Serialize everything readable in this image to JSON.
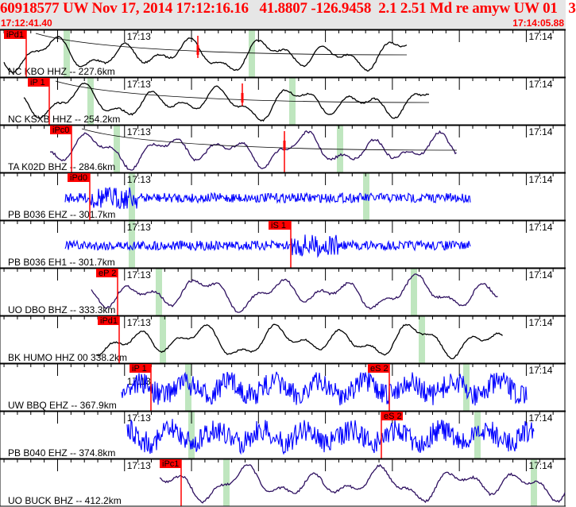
{
  "header": {
    "title": "60918577 UW Nov 17, 2014 17:12:16.16   41.8807 -126.9458  2.1 2.51 Md re amyw UW 01   3",
    "start_time": "17:12:41.40",
    "end_time": "17:14:05.88"
  },
  "colors": {
    "pick": "#ff0000",
    "window": "#bfe6bf",
    "black": "#000000",
    "purple": "#2e1060",
    "blue": "#0000ff"
  },
  "chart_data": {
    "type": "line",
    "title": "60918577 UW Nov 17, 2014 17:12:16.16",
    "x_range": [
      "17:12:41.40",
      "17:14:05.88"
    ],
    "time_labels": [
      "17:13",
      "17:14"
    ],
    "rows": [
      {
        "station": "NC KBO HHZ -- 227.6km",
        "picks": [
          "iPd1"
        ],
        "trace": "black"
      },
      {
        "station": "NC KSXB HHZ -- 254.2km",
        "picks": [
          "iP 1"
        ],
        "trace": "black"
      },
      {
        "station": "TA K02D BHZ -- 284.6km",
        "picks": [
          "iPc0"
        ],
        "trace": "purple"
      },
      {
        "station": "PB B036 EHZ -- 301.7km",
        "picks": [
          "iPd0"
        ],
        "trace": "blue"
      },
      {
        "station": "PB B036 EH1 -- 301.7km",
        "picks": [
          "iS 1"
        ],
        "trace": "blue"
      },
      {
        "station": "UO DBO BHZ -- 333.3km",
        "picks": [
          "eP 2"
        ],
        "trace": "purple"
      },
      {
        "station": "BK HUMO HHZ 00 338.2km",
        "picks": [
          "iPd1"
        ],
        "trace": "black"
      },
      {
        "station": "UW BBQ EHZ -- 367.9km",
        "picks": [
          "iP 1",
          "eS 2"
        ],
        "trace": "blue"
      },
      {
        "station": "PB B040 EHZ -- 374.8km",
        "picks": [
          "eS 2"
        ],
        "trace": "blue"
      },
      {
        "station": "UO BUCK BHZ -- 412.2km",
        "picks": [
          "iPc1"
        ],
        "trace": "purple"
      }
    ]
  }
}
